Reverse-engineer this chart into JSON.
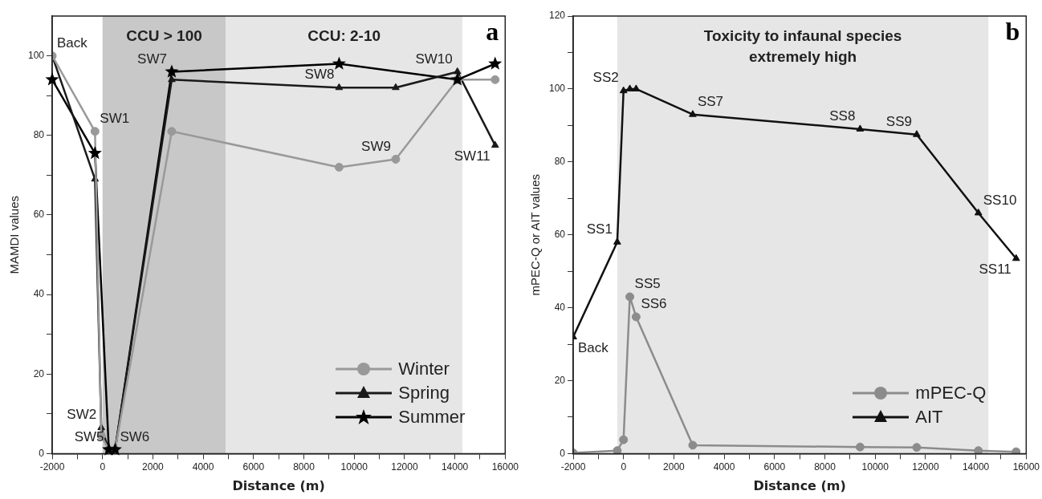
{
  "chart_data": [
    {
      "type": "line",
      "xlabel": "Distance (m)",
      "ylabel": "MAMDI values",
      "xlim": [
        -2000,
        16000
      ],
      "xticks": [
        -2000,
        {
          "value": -1000,
          "label": null
        },
        0,
        {
          "value": 1000,
          "label": null
        },
        2000,
        {
          "value": 3000,
          "label": null
        },
        4000,
        {
          "value": 5000,
          "label": null
        },
        6000,
        {
          "value": 7000,
          "label": null
        },
        8000,
        {
          "value": 9000,
          "label": null
        },
        10000,
        {
          "value": 11000,
          "label": null
        },
        12000,
        {
          "value": 13000,
          "label": null
        },
        14000,
        {
          "value": 15000,
          "label": null
        },
        16000
      ],
      "ylim": [
        0,
        110
      ],
      "yticks": [
        0,
        {
          "value": 10,
          "label": null
        },
        20,
        {
          "value": 30,
          "label": null
        },
        40,
        {
          "value": 50,
          "label": null
        },
        60,
        {
          "value": 70,
          "label": null
        },
        80,
        {
          "value": 90,
          "label": null
        },
        100
      ],
      "x": [
        -2000,
        -300,
        -50,
        250,
        500,
        2750,
        9400,
        11650,
        14100,
        15600
      ],
      "series": [
        {
          "name": "Winter",
          "color": "#999999",
          "marker": "circle",
          "values": [
            100,
            81,
            4.5,
            1,
            1,
            81,
            72,
            74,
            94,
            94
          ]
        },
        {
          "name": "Spring",
          "color": "#1a1a1a",
          "marker": "triangle",
          "values": [
            100,
            69,
            6.5,
            1,
            1,
            94,
            92,
            92,
            96,
            77.5
          ]
        },
        {
          "name": "Summer",
          "color": "#000000",
          "marker": "star",
          "values": [
            94,
            75.5,
            null,
            1,
            1,
            96,
            98,
            null,
            94,
            98
          ]
        }
      ],
      "bands": [
        {
          "axis": "x",
          "from": 0,
          "to": 4900,
          "label": "CCU > 100",
          "color": "#c8c8c8"
        },
        {
          "axis": "x",
          "from": 4900,
          "to": 14300,
          "label": "CCU: 2-10",
          "color": "#e6e6e6"
        }
      ],
      "annotations": [
        "a",
        {
          "text": "Back",
          "x": -2000,
          "y": 100
        },
        {
          "text": "SW1",
          "x": -300,
          "y": 81
        },
        {
          "text": "SW2",
          "x": -50,
          "y": 6.5
        },
        {
          "text": "SW5",
          "x": 250,
          "y": 1
        },
        {
          "text": "SW6",
          "x": 500,
          "y": 1
        },
        {
          "text": "SW7",
          "x": 2750,
          "y": 96
        },
        {
          "text": "SW8",
          "x": 9400,
          "y": 92
        },
        {
          "text": "SW9",
          "x": 11650,
          "y": 74
        },
        {
          "text": "SW10",
          "x": 14100,
          "y": 96
        },
        {
          "text": "SW11",
          "x": 15600,
          "y": 77.5
        }
      ],
      "legend": "bottom right",
      "grid": false
    },
    {
      "type": "line",
      "xlabel": "Distance (m)",
      "ylabel": "mPEC-Q or AIT values",
      "xlim": [
        -2000,
        16000
      ],
      "xticks": [
        -2000,
        {
          "value": -1000,
          "label": null
        },
        0,
        {
          "value": 1000,
          "label": null
        },
        2000,
        {
          "value": 3000,
          "label": null
        },
        4000,
        {
          "value": 5000,
          "label": null
        },
        6000,
        {
          "value": 7000,
          "label": null
        },
        8000,
        {
          "value": 9000,
          "label": null
        },
        10000,
        {
          "value": 11000,
          "label": null
        },
        12000,
        {
          "value": 13000,
          "label": null
        },
        14000,
        {
          "value": 15000,
          "label": null
        },
        16000
      ],
      "ylim": [
        0,
        120
      ],
      "yticks": [
        0,
        {
          "value": 10,
          "label": null
        },
        20,
        {
          "value": 30,
          "label": null
        },
        40,
        {
          "value": 50,
          "label": null
        },
        60,
        {
          "value": 70,
          "label": null
        },
        80,
        {
          "value": 90,
          "label": null
        },
        100,
        {
          "value": 110,
          "label": null
        },
        120
      ],
      "x": [
        -2000,
        -250,
        0,
        250,
        500,
        2750,
        9400,
        11650,
        14100,
        15600
      ],
      "series": [
        {
          "name": "mPEC-Q",
          "color": "#8c8c8c",
          "marker": "circle",
          "values": [
            0.2,
            0.8,
            3.8,
            43,
            37.5,
            2.3,
            1.8,
            1.7,
            0.8,
            0.5
          ]
        },
        {
          "name": "AIT",
          "color": "#111111",
          "marker": "triangle",
          "values": [
            32,
            58,
            99.5,
            100,
            100,
            93,
            89,
            87.5,
            66,
            53.5
          ]
        }
      ],
      "bands": [
        {
          "axis": "x",
          "from": -250,
          "to": 14500,
          "label": "Toxicity to infaunal species extremely high",
          "color": "#e6e6e6"
        }
      ],
      "annotations": [
        "b",
        {
          "text": "Back",
          "x": -2000,
          "y": 32
        },
        {
          "text": "SS1",
          "x": -250,
          "y": 58
        },
        {
          "text": "SS2",
          "x": 0,
          "y": 99.5
        },
        {
          "text": "SS5",
          "x": 250,
          "y": 43
        },
        {
          "text": "SS6",
          "x": 500,
          "y": 37.5
        },
        {
          "text": "SS7",
          "x": 2750,
          "y": 93
        },
        {
          "text": "SS8",
          "x": 9400,
          "y": 89
        },
        {
          "text": "SS9",
          "x": 11650,
          "y": 87.5
        },
        {
          "text": "SS10",
          "x": 14100,
          "y": 66
        },
        {
          "text": "SS11",
          "x": 15600,
          "y": 53.5
        }
      ],
      "legend": "bottom right",
      "grid": false
    }
  ]
}
